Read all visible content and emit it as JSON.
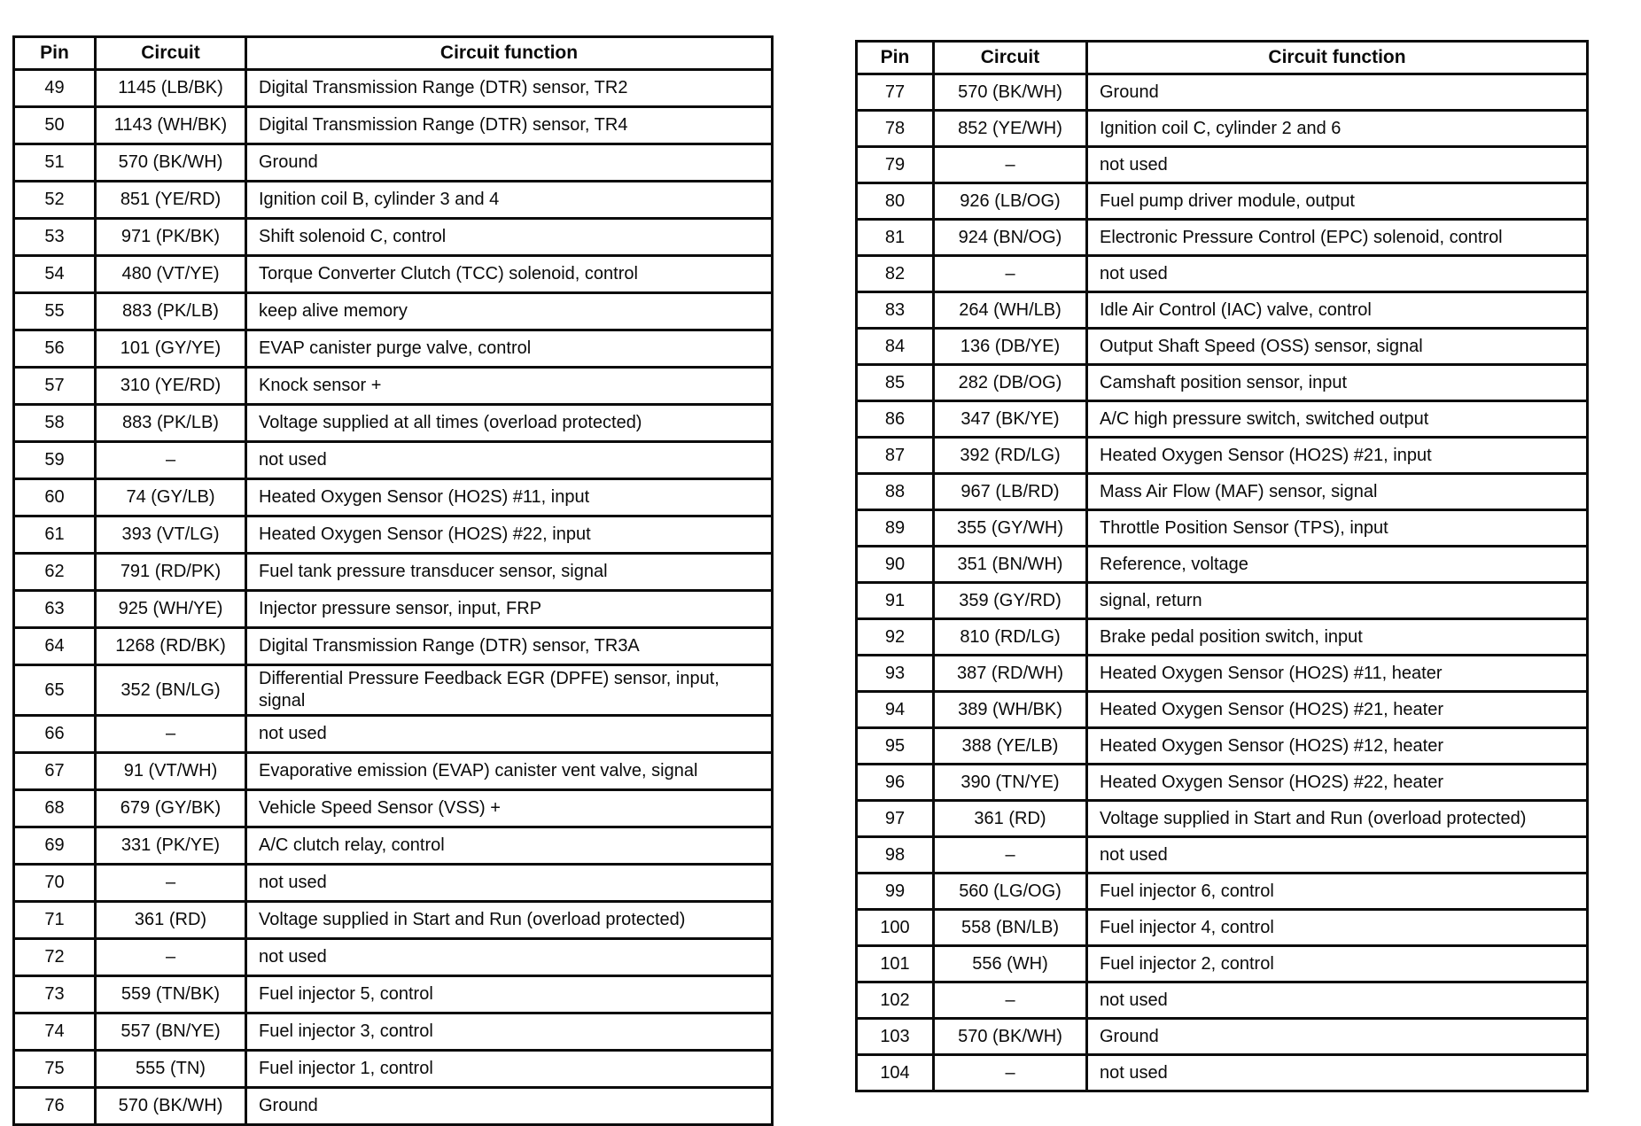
{
  "tables": [
    {
      "id": "left",
      "headers": [
        "Pin",
        "Circuit",
        "Circuit function"
      ],
      "rows": [
        [
          "49",
          "1145 (LB/BK)",
          "Digital Transmission Range (DTR) sensor, TR2"
        ],
        [
          "50",
          "1143 (WH/BK)",
          "Digital Transmission Range (DTR) sensor, TR4"
        ],
        [
          "51",
          "570 (BK/WH)",
          "Ground"
        ],
        [
          "52",
          "851 (YE/RD)",
          "Ignition coil B, cylinder 3 and 4"
        ],
        [
          "53",
          "971 (PK/BK)",
          "Shift solenoid C, control"
        ],
        [
          "54",
          "480 (VT/YE)",
          "Torque Converter Clutch (TCC) solenoid, control"
        ],
        [
          "55",
          "883 (PK/LB)",
          "keep alive memory"
        ],
        [
          "56",
          "101 (GY/YE)",
          "EVAP canister purge valve, control"
        ],
        [
          "57",
          "310 (YE/RD)",
          "Knock sensor +"
        ],
        [
          "58",
          "883 (PK/LB)",
          "Voltage supplied at all times (overload protected)"
        ],
        [
          "59",
          "–",
          "not used"
        ],
        [
          "60",
          "74 (GY/LB)",
          "Heated Oxygen Sensor (HO2S) #11, input"
        ],
        [
          "61",
          "393 (VT/LG)",
          "Heated Oxygen Sensor (HO2S) #22, input"
        ],
        [
          "62",
          "791 (RD/PK)",
          "Fuel tank pressure transducer sensor, signal"
        ],
        [
          "63",
          "925 (WH/YE)",
          "Injector pressure sensor, input, FRP"
        ],
        [
          "64",
          "1268 (RD/BK)",
          "Digital Transmission Range (DTR) sensor, TR3A"
        ],
        [
          "65",
          "352 (BN/LG)",
          "Differential Pressure Feedback EGR (DPFE) sensor, input, signal"
        ],
        [
          "66",
          "–",
          "not used"
        ],
        [
          "67",
          "91 (VT/WH)",
          "Evaporative emission (EVAP) canister vent valve, signal"
        ],
        [
          "68",
          "679 (GY/BK)",
          "Vehicle Speed Sensor (VSS) +"
        ],
        [
          "69",
          "331 (PK/YE)",
          "A/C clutch relay, control"
        ],
        [
          "70",
          "–",
          "not used"
        ],
        [
          "71",
          "361 (RD)",
          "Voltage supplied in Start and Run (overload protected)"
        ],
        [
          "72",
          "–",
          "not used"
        ],
        [
          "73",
          "559 (TN/BK)",
          "Fuel injector 5, control"
        ],
        [
          "74",
          "557 (BN/YE)",
          "Fuel injector 3, control"
        ],
        [
          "75",
          "555 (TN)",
          "Fuel injector 1, control"
        ],
        [
          "76",
          "570 (BK/WH)",
          "Ground"
        ]
      ]
    },
    {
      "id": "right",
      "headers": [
        "Pin",
        "Circuit",
        "Circuit function"
      ],
      "rows": [
        [
          "77",
          "570 (BK/WH)",
          "Ground"
        ],
        [
          "78",
          "852 (YE/WH)",
          "Ignition coil C, cylinder 2 and 6"
        ],
        [
          "79",
          "–",
          "not used"
        ],
        [
          "80",
          "926 (LB/OG)",
          "Fuel pump driver module, output"
        ],
        [
          "81",
          "924 (BN/OG)",
          "Electronic Pressure Control (EPC) solenoid, control"
        ],
        [
          "82",
          "–",
          "not used"
        ],
        [
          "83",
          "264 (WH/LB)",
          "Idle Air Control (IAC) valve, control"
        ],
        [
          "84",
          "136 (DB/YE)",
          "Output Shaft Speed (OSS) sensor, signal"
        ],
        [
          "85",
          "282 (DB/OG)",
          "Camshaft position sensor, input"
        ],
        [
          "86",
          "347 (BK/YE)",
          "A/C high pressure switch, switched output"
        ],
        [
          "87",
          "392 (RD/LG)",
          "Heated Oxygen Sensor (HO2S) #21, input"
        ],
        [
          "88",
          "967 (LB/RD)",
          "Mass Air Flow (MAF) sensor, signal"
        ],
        [
          "89",
          "355 (GY/WH)",
          "Throttle Position Sensor (TPS), input"
        ],
        [
          "90",
          "351 (BN/WH)",
          "Reference, voltage"
        ],
        [
          "91",
          "359 (GY/RD)",
          "signal, return"
        ],
        [
          "92",
          "810 (RD/LG)",
          "Brake pedal position switch, input"
        ],
        [
          "93",
          "387 (RD/WH)",
          "Heated Oxygen Sensor (HO2S) #11, heater"
        ],
        [
          "94",
          "389 (WH/BK)",
          "Heated Oxygen Sensor (HO2S) #21, heater"
        ],
        [
          "95",
          "388 (YE/LB)",
          "Heated Oxygen Sensor (HO2S) #12, heater"
        ],
        [
          "96",
          "390 (TN/YE)",
          "Heated Oxygen Sensor (HO2S) #22, heater"
        ],
        [
          "97",
          "361 (RD)",
          "Voltage supplied in Start and Run (overload protected)"
        ],
        [
          "98",
          "–",
          "not used"
        ],
        [
          "99",
          "560 (LG/OG)",
          "Fuel injector 6, control"
        ],
        [
          "100",
          "558 (BN/LB)",
          "Fuel injector 4, control"
        ],
        [
          "101",
          "556 (WH)",
          "Fuel injector 2, control"
        ],
        [
          "102",
          "–",
          "not used"
        ],
        [
          "103",
          "570 (BK/WH)",
          "Ground"
        ],
        [
          "104",
          "–",
          "not used"
        ]
      ]
    }
  ]
}
